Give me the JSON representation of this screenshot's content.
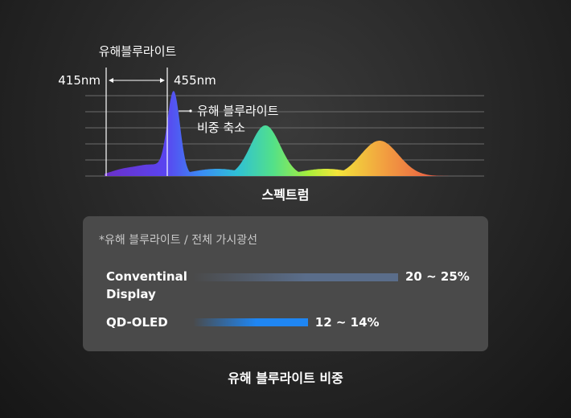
{
  "chart_data": [
    {
      "type": "area",
      "title": "",
      "xlabel": "스펙트럼",
      "annotations": {
        "band_label": "유해블루라이트",
        "band_start_label": "415nm",
        "band_end_label": "455nm",
        "callout_line1": "유해 블루라이트",
        "callout_line2": "비중 축소"
      },
      "peaks": [
        {
          "name": "blue",
          "relative_height": 1.0
        },
        {
          "name": "green",
          "relative_height": 0.63
        },
        {
          "name": "red",
          "relative_height": 0.44
        }
      ],
      "grid": true
    },
    {
      "type": "bar",
      "title": "유해 블루라이트 비중",
      "note": "*유해 블루라이트 / 전체 가시광선",
      "categories": [
        "Conventinal Display",
        "QD-OLED"
      ],
      "category_lines": [
        [
          "Conventinal",
          "Display"
        ],
        [
          "QD-OLED"
        ]
      ],
      "value_labels": [
        "20 ~ 25%",
        "12 ~ 14%"
      ],
      "values": [
        22.5,
        13
      ],
      "ranges": [
        [
          20,
          25
        ],
        [
          12,
          14
        ]
      ],
      "colors": [
        "#5a6d8a",
        "#1f86f2"
      ]
    }
  ]
}
